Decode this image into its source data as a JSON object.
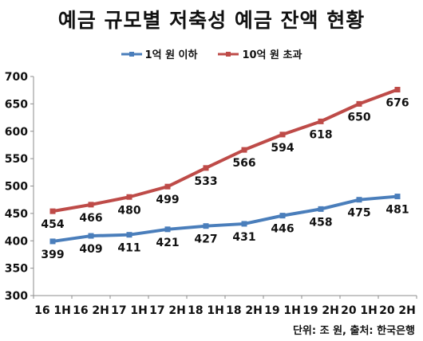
{
  "chart_data": {
    "type": "line",
    "title": "예금 규모별 저축성 예금 잔액 현황",
    "categories": [
      "16 1H",
      "16 2H",
      "17 1H",
      "17 2H",
      "18 1H",
      "18 2H",
      "19 1H",
      "19 2H",
      "20 1H",
      "20 2H"
    ],
    "series": [
      {
        "name": "1억 원 이하",
        "color": "#4a7ebb",
        "values": [
          399,
          409,
          411,
          421,
          427,
          431,
          446,
          458,
          475,
          481
        ]
      },
      {
        "name": "10억 원 초과",
        "color": "#be4b48",
        "values": [
          454,
          466,
          480,
          499,
          533,
          566,
          594,
          618,
          650,
          676
        ]
      }
    ],
    "ylim": [
      300,
      700
    ],
    "yticks": [
      300,
      350,
      400,
      450,
      500,
      550,
      600,
      650,
      700
    ],
    "grid": false,
    "legend_position": "top",
    "data_labels": true,
    "note": "단위: 조 원, 출처: 한국은행"
  }
}
